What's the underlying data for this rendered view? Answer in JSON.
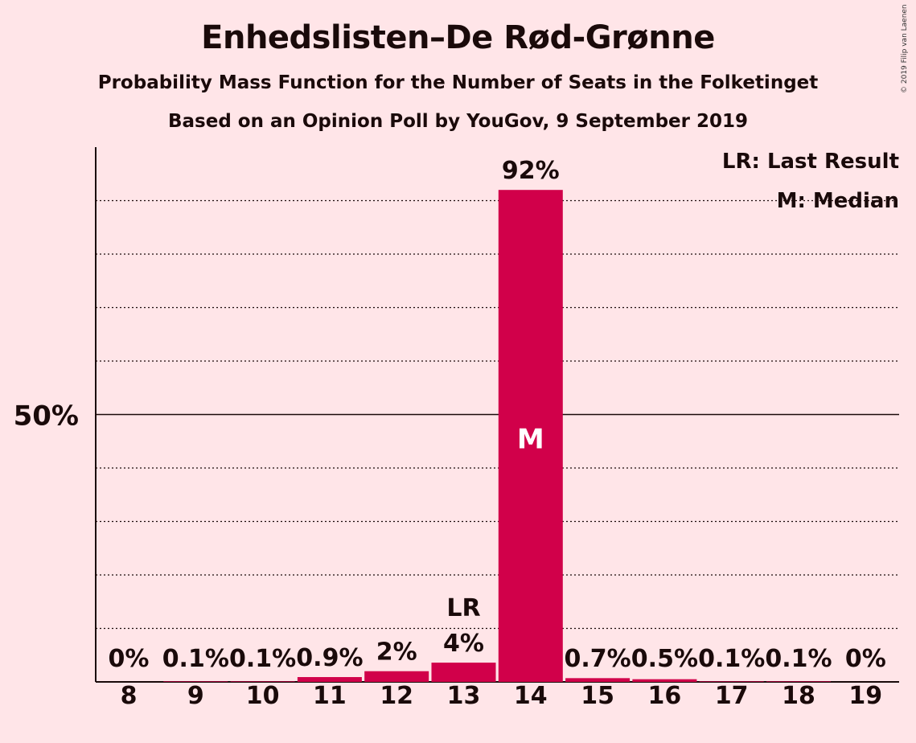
{
  "title": "Enhedslisten–De Rød-Grønne",
  "subtitle": "Probability Mass Function for the Number of Seats in the Folketinget",
  "subtitle2": "Based on an Opinion Poll by YouGov, 9 September 2019",
  "copyright": "© 2019 Filip van Laenen",
  "legend": {
    "last_result": "LR: Last Result",
    "median": "M: Median"
  },
  "colors": {
    "background": "#ffe5e8",
    "bar": "#d1004a",
    "text": "#1a0a0a"
  },
  "chart_data": {
    "type": "bar",
    "categories": [
      "8",
      "9",
      "10",
      "11",
      "12",
      "13",
      "14",
      "15",
      "16",
      "17",
      "18",
      "19"
    ],
    "values": [
      0,
      0.1,
      0.1,
      0.9,
      2,
      3.6,
      92,
      0.7,
      0.5,
      0.1,
      0.1,
      0
    ],
    "data_labels": [
      "0%",
      "0.1%",
      "0.1%",
      "0.9%",
      "2%",
      "4%",
      "92%",
      "0.7%",
      "0.5%",
      "0.1%",
      "0.1%",
      "0%"
    ],
    "ylim": [
      0,
      100
    ],
    "y_tick_label": "50%",
    "y_tick_value": 50,
    "grid_lines": [
      10,
      20,
      30,
      40,
      60,
      70,
      80,
      90
    ],
    "grid": true,
    "last_result_category": "13",
    "last_result_marker": "LR",
    "median_category": "14",
    "median_marker": "M",
    "legend_position": "top-right"
  }
}
